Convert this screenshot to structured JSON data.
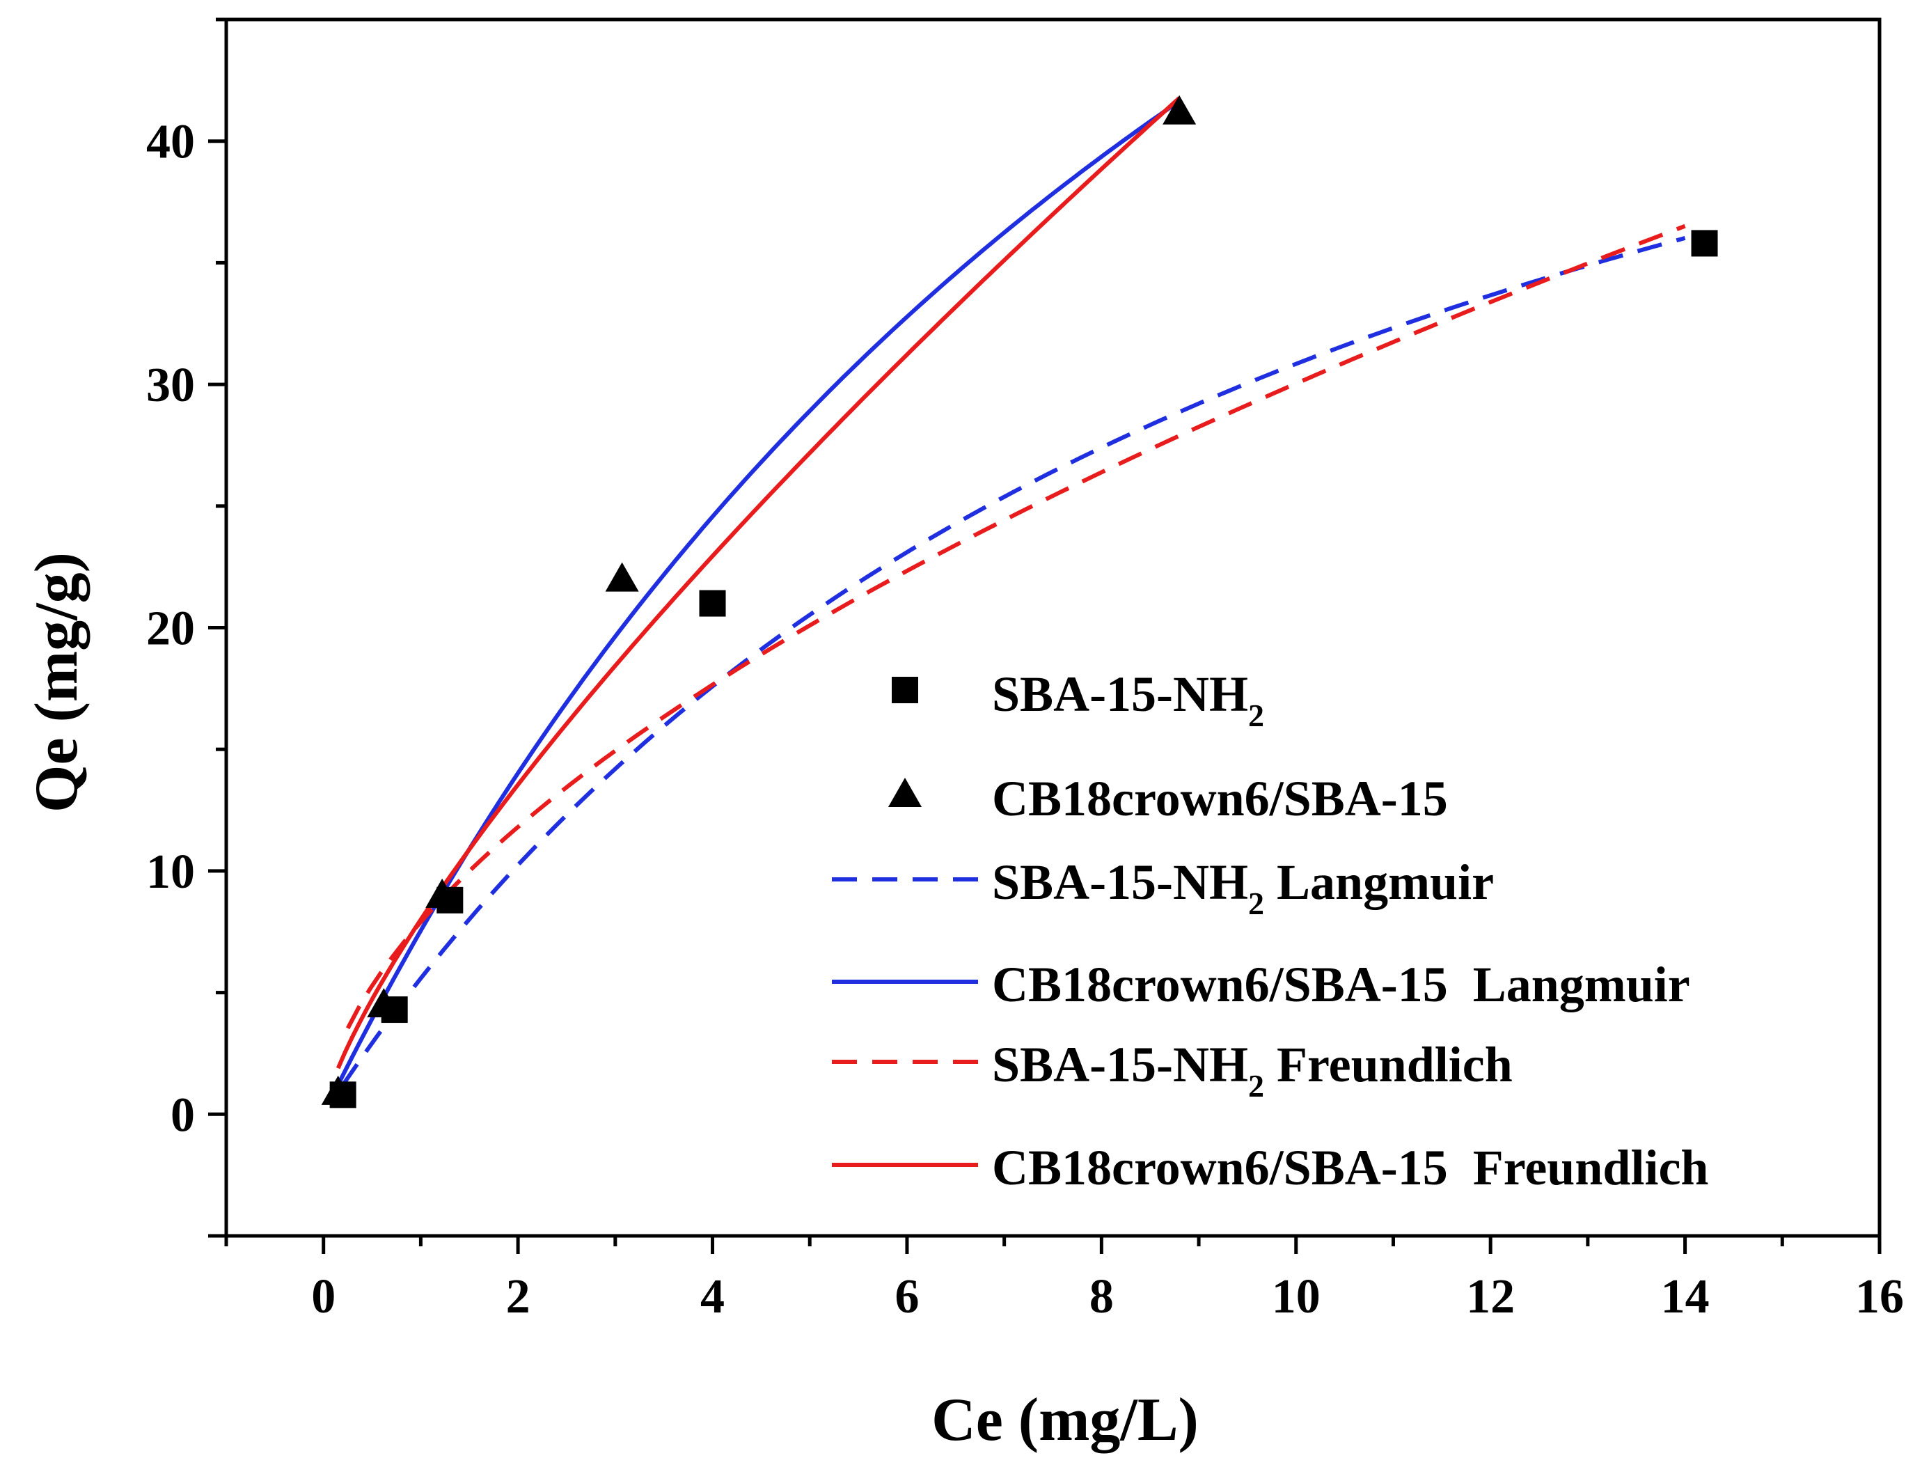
{
  "chart_data": {
    "type": "scatter",
    "xlabel": "Ce (mg/L)",
    "ylabel": "Qe (mg/g)",
    "xlim": [
      -1,
      16
    ],
    "ylim": [
      -5,
      45
    ],
    "xticks": [
      0,
      2,
      4,
      6,
      8,
      10,
      12,
      14,
      16
    ],
    "yticks": [
      0,
      10,
      20,
      30,
      40
    ],
    "grid": false,
    "legend_position": "lower-right",
    "series": [
      {
        "name": "SBA-15-NH2",
        "label_main": "SBA-15-NH",
        "label_sub": "2",
        "label_suffix": "",
        "kind": "markers",
        "marker": "square",
        "color": "#000000",
        "points": [
          [
            0.2,
            0.8
          ],
          [
            0.73,
            4.3
          ],
          [
            1.3,
            8.8
          ],
          [
            4.0,
            21.0
          ],
          [
            14.2,
            35.8
          ]
        ]
      },
      {
        "name": "CB18crown6/SBA-15",
        "label_main": "CB18crown6/SBA-15",
        "label_sub": "",
        "label_suffix": "",
        "kind": "markers",
        "marker": "triangle",
        "color": "#000000",
        "points": [
          [
            0.15,
            0.9
          ],
          [
            0.62,
            4.5
          ],
          [
            1.22,
            9.0
          ],
          [
            3.07,
            22.0
          ],
          [
            8.8,
            41.2
          ]
        ]
      },
      {
        "name": "SBA-15-NH2 Langmuir",
        "label_main": "SBA-15-NH",
        "label_sub": "2",
        "label_suffix": " Langmuir",
        "kind": "line",
        "dash": true,
        "color": "#1f2fe0",
        "model": "langmuir",
        "qmax": 62.0,
        "K": 0.099,
        "xrange": [
          0.2,
          14.0
        ]
      },
      {
        "name": "CB18crown6/SBA-15 Langmuir",
        "label_main": "CB18crown6/SBA-15  Langmuir",
        "label_sub": "",
        "label_suffix": "",
        "kind": "line",
        "dash": false,
        "color": "#1f2fe0",
        "model": "langmuir",
        "qmax": 99.0,
        "K": 0.0825,
        "xrange": [
          0.15,
          8.8
        ]
      },
      {
        "name": "SBA-15-NH2 Freundlich",
        "label_main": "SBA-15-NH",
        "label_sub": "2",
        "label_suffix": " Freundlich",
        "kind": "line",
        "dash": true,
        "color": "#e81c1c",
        "model": "freundlich",
        "Kf": 7.9,
        "n_inv": 0.58,
        "xrange": [
          0.25,
          14.0
        ]
      },
      {
        "name": "CB18crown6/SBA-15 Freundlich",
        "label_main": "CB18crown6/SBA-15  Freundlich",
        "label_sub": "",
        "label_suffix": "",
        "kind": "line",
        "dash": false,
        "color": "#e81c1c",
        "model": "freundlich",
        "Kf": 8.0,
        "n_inv": 0.76,
        "xrange": [
          0.15,
          8.8
        ]
      }
    ]
  }
}
